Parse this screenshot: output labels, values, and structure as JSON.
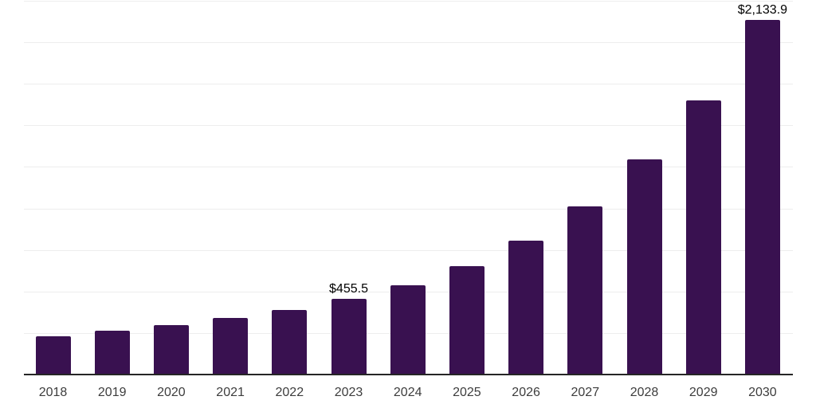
{
  "chart_data": {
    "type": "bar",
    "title": "",
    "categories": [
      "2018",
      "2019",
      "2020",
      "2021",
      "2022",
      "2023",
      "2024",
      "2025",
      "2026",
      "2027",
      "2028",
      "2029",
      "2030"
    ],
    "values": [
      232,
      264,
      296,
      339,
      389,
      455.5,
      539,
      652,
      808,
      1012,
      1297,
      1652,
      2133.9
    ],
    "data_labels": [
      {
        "category": "2023",
        "text": "$455.5"
      },
      {
        "category": "2030",
        "text": "$2,133.9"
      }
    ],
    "xlabel": "",
    "ylabel": "",
    "ylim": [
      0,
      2250
    ],
    "gridline_interval": 250,
    "grid": true,
    "legend": "none",
    "colors": {
      "bar": "#391150",
      "axis_line": "#262626",
      "gridline": "#ededed",
      "tick_label": "#3d3d3d",
      "data_label": "#000000"
    }
  }
}
